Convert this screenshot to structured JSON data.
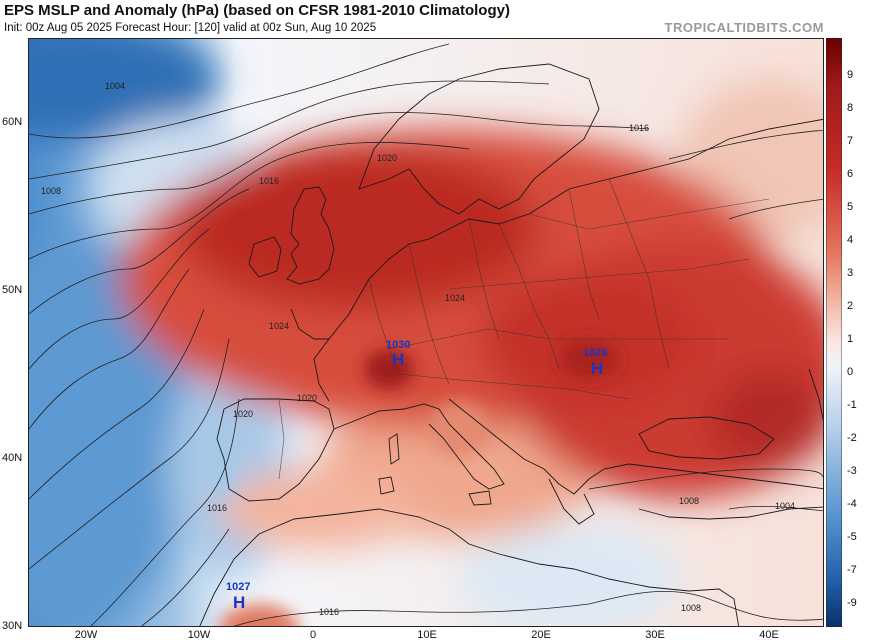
{
  "header": {
    "title": "EPS MSLP and Anomaly (hPa) (based on CFSR 1981-2010 Climatology)",
    "subtitle": "Init: 00z Aug 05 2025   Forecast Hour: [120]   valid at 00z Sun, Aug 10 2025",
    "brand": "TROPICALTIDBITS.COM"
  },
  "map": {
    "region": "Europe, North Africa, North Atlantic",
    "projection": "lat-lon",
    "lon_range": [
      -25,
      47
    ],
    "lat_range": [
      30,
      66
    ],
    "lat_labels": [
      "60N",
      "50N",
      "40N",
      "30N"
    ],
    "lon_labels": [
      "20W",
      "10W",
      "0",
      "10E",
      "20E",
      "30E",
      "40E"
    ],
    "isobar_labels": [
      "1004",
      "1008",
      "1016",
      "1020",
      "1024",
      "1016",
      "1020",
      "1016",
      "1008",
      "1004",
      "1008",
      "1016",
      "1020",
      "1024"
    ],
    "pressure_centers": [
      {
        "symbol": "H",
        "value": "1030",
        "location": "Western Alps / SE France"
      },
      {
        "symbol": "H",
        "value": "1026",
        "location": "Romania"
      },
      {
        "symbol": "H",
        "value": "1027",
        "location": "Morocco"
      }
    ],
    "notes": "Strong positive MSLP anomaly (red) over British Isles, central & eastern Europe; negative anomalies (blue) over the North Atlantic and west of Iberia."
  },
  "colorbar": {
    "labels": [
      "9",
      "8",
      "7",
      "6",
      "5",
      "4",
      "3",
      "2",
      "1",
      "0",
      "-1",
      "-2",
      "-3",
      "-4",
      "-5",
      "-7",
      "-9"
    ],
    "colors": {
      "top": "#6b0000",
      "high": "#c62a26",
      "mid_high": "#ef9b83",
      "neutral": "#fbe9e6",
      "low": "#b7d0ea",
      "bottom": "#08306b"
    }
  }
}
